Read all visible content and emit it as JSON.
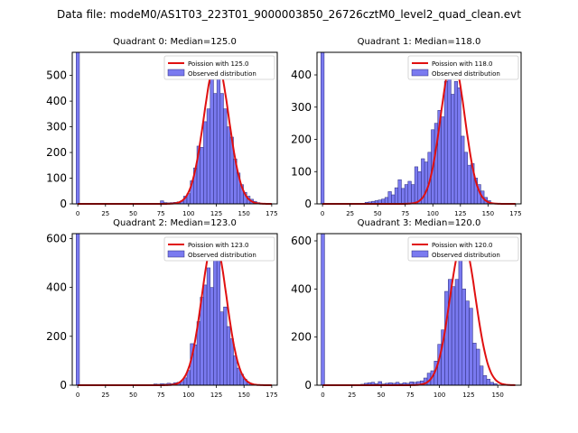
{
  "figure": {
    "suptitle": "Data file: modeM0/AS1T03_223T01_9000003850_26726cztM0_level2_quad_clean.evt"
  },
  "chart_data": [
    {
      "type": "bar",
      "title": "Quadrant 0: Median=125.0",
      "xlim": [
        -5,
        180
      ],
      "ylim": [
        0,
        590
      ],
      "xticks": [
        0,
        25,
        50,
        75,
        100,
        125,
        150,
        175
      ],
      "yticks": [
        0,
        100,
        200,
        300,
        400,
        500
      ],
      "legend": {
        "position": "top-right",
        "curve_label": "Poission with 125.0",
        "bars_label": "Observed distribution"
      },
      "poisson_mean": 125.0,
      "poisson_peak": 560,
      "spike": {
        "x": 0,
        "width": 3,
        "value": 590
      },
      "bin_width": 3,
      "bins": [
        {
          "x": 76,
          "y": 12
        },
        {
          "x": 79,
          "y": 5
        },
        {
          "x": 82,
          "y": 4
        },
        {
          "x": 85,
          "y": 5
        },
        {
          "x": 88,
          "y": 6
        },
        {
          "x": 91,
          "y": 8
        },
        {
          "x": 94,
          "y": 10
        },
        {
          "x": 97,
          "y": 30
        },
        {
          "x": 100,
          "y": 40
        },
        {
          "x": 103,
          "y": 90
        },
        {
          "x": 106,
          "y": 140
        },
        {
          "x": 109,
          "y": 225
        },
        {
          "x": 112,
          "y": 220
        },
        {
          "x": 115,
          "y": 320
        },
        {
          "x": 118,
          "y": 370
        },
        {
          "x": 121,
          "y": 490
        },
        {
          "x": 124,
          "y": 430
        },
        {
          "x": 127,
          "y": 520
        },
        {
          "x": 130,
          "y": 430
        },
        {
          "x": 133,
          "y": 370
        },
        {
          "x": 136,
          "y": 300
        },
        {
          "x": 139,
          "y": 260
        },
        {
          "x": 142,
          "y": 175
        },
        {
          "x": 145,
          "y": 120
        },
        {
          "x": 148,
          "y": 75
        },
        {
          "x": 151,
          "y": 45
        },
        {
          "x": 154,
          "y": 30
        },
        {
          "x": 157,
          "y": 18
        },
        {
          "x": 160,
          "y": 10
        },
        {
          "x": 163,
          "y": 5
        }
      ]
    },
    {
      "type": "bar",
      "title": "Quadrant 1: Median=118.0",
      "xlim": [
        -5,
        180
      ],
      "ylim": [
        0,
        470
      ],
      "xticks": [
        0,
        25,
        50,
        75,
        100,
        125,
        150,
        175
      ],
      "yticks": [
        0,
        100,
        200,
        300,
        400
      ],
      "legend": {
        "position": "top-right",
        "curve_label": "Poission with 118.0",
        "bars_label": "Observed distribution"
      },
      "poisson_mean": 118.0,
      "poisson_peak": 450,
      "spike": {
        "x": 0,
        "width": 3,
        "value": 470
      },
      "bin_width": 3,
      "bins": [
        {
          "x": 40,
          "y": 5
        },
        {
          "x": 43,
          "y": 6
        },
        {
          "x": 46,
          "y": 8
        },
        {
          "x": 49,
          "y": 10
        },
        {
          "x": 52,
          "y": 12
        },
        {
          "x": 55,
          "y": 15
        },
        {
          "x": 58,
          "y": 20
        },
        {
          "x": 61,
          "y": 38
        },
        {
          "x": 64,
          "y": 28
        },
        {
          "x": 67,
          "y": 50
        },
        {
          "x": 70,
          "y": 75
        },
        {
          "x": 73,
          "y": 48
        },
        {
          "x": 76,
          "y": 60
        },
        {
          "x": 79,
          "y": 70
        },
        {
          "x": 82,
          "y": 60
        },
        {
          "x": 85,
          "y": 115
        },
        {
          "x": 88,
          "y": 100
        },
        {
          "x": 91,
          "y": 140
        },
        {
          "x": 94,
          "y": 130
        },
        {
          "x": 97,
          "y": 160
        },
        {
          "x": 100,
          "y": 230
        },
        {
          "x": 103,
          "y": 250
        },
        {
          "x": 106,
          "y": 290
        },
        {
          "x": 109,
          "y": 270
        },
        {
          "x": 112,
          "y": 380
        },
        {
          "x": 115,
          "y": 440
        },
        {
          "x": 118,
          "y": 340
        },
        {
          "x": 121,
          "y": 380
        },
        {
          "x": 124,
          "y": 360
        },
        {
          "x": 127,
          "y": 210
        },
        {
          "x": 130,
          "y": 160
        },
        {
          "x": 133,
          "y": 120
        },
        {
          "x": 136,
          "y": 125
        },
        {
          "x": 139,
          "y": 80
        },
        {
          "x": 142,
          "y": 60
        },
        {
          "x": 145,
          "y": 40
        },
        {
          "x": 148,
          "y": 20
        },
        {
          "x": 151,
          "y": 10
        }
      ]
    },
    {
      "type": "bar",
      "title": "Quadrant 2: Median=123.0",
      "xlim": [
        -5,
        180
      ],
      "ylim": [
        0,
        620
      ],
      "xticks": [
        0,
        25,
        50,
        75,
        100,
        125,
        150,
        175
      ],
      "yticks": [
        0,
        200,
        400,
        600
      ],
      "legend": {
        "position": "top-right",
        "curve_label": "Poission with 123.0",
        "bars_label": "Observed distribution"
      },
      "poisson_mean": 123.0,
      "poisson_peak": 600,
      "spike": {
        "x": 0,
        "width": 3,
        "value": 620
      },
      "bin_width": 3,
      "bins": [
        {
          "x": 70,
          "y": 5
        },
        {
          "x": 73,
          "y": 4
        },
        {
          "x": 76,
          "y": 6
        },
        {
          "x": 79,
          "y": 5
        },
        {
          "x": 82,
          "y": 8
        },
        {
          "x": 85,
          "y": 6
        },
        {
          "x": 88,
          "y": 10
        },
        {
          "x": 91,
          "y": 12
        },
        {
          "x": 94,
          "y": 15
        },
        {
          "x": 97,
          "y": 30
        },
        {
          "x": 100,
          "y": 60
        },
        {
          "x": 103,
          "y": 170
        },
        {
          "x": 106,
          "y": 165
        },
        {
          "x": 109,
          "y": 260
        },
        {
          "x": 112,
          "y": 360
        },
        {
          "x": 115,
          "y": 410
        },
        {
          "x": 118,
          "y": 480
        },
        {
          "x": 121,
          "y": 400
        },
        {
          "x": 124,
          "y": 590
        },
        {
          "x": 127,
          "y": 520
        },
        {
          "x": 130,
          "y": 300
        },
        {
          "x": 133,
          "y": 320
        },
        {
          "x": 136,
          "y": 240
        },
        {
          "x": 139,
          "y": 190
        },
        {
          "x": 142,
          "y": 120
        },
        {
          "x": 145,
          "y": 70
        },
        {
          "x": 148,
          "y": 45
        },
        {
          "x": 151,
          "y": 25
        },
        {
          "x": 154,
          "y": 12
        },
        {
          "x": 157,
          "y": 6
        }
      ]
    },
    {
      "type": "bar",
      "title": "Quadrant 3: Median=120.0",
      "xlim": [
        -5,
        170
      ],
      "ylim": [
        0,
        630
      ],
      "xticks": [
        0,
        25,
        50,
        75,
        100,
        125,
        150
      ],
      "yticks": [
        0,
        200,
        400,
        600
      ],
      "legend": {
        "position": "top-right",
        "curve_label": "Poission with 120.0",
        "bars_label": "Observed distribution"
      },
      "poisson_mean": 120.0,
      "poisson_peak": 600,
      "spike": {
        "x": 0,
        "width": 3,
        "value": 630
      },
      "bin_width": 3,
      "bins": [
        {
          "x": 34,
          "y": 4
        },
        {
          "x": 37,
          "y": 8
        },
        {
          "x": 40,
          "y": 10
        },
        {
          "x": 43,
          "y": 12
        },
        {
          "x": 46,
          "y": 6
        },
        {
          "x": 49,
          "y": 15
        },
        {
          "x": 52,
          "y": 5
        },
        {
          "x": 55,
          "y": 8
        },
        {
          "x": 58,
          "y": 10
        },
        {
          "x": 61,
          "y": 8
        },
        {
          "x": 64,
          "y": 12
        },
        {
          "x": 67,
          "y": 6
        },
        {
          "x": 70,
          "y": 10
        },
        {
          "x": 73,
          "y": 8
        },
        {
          "x": 76,
          "y": 14
        },
        {
          "x": 79,
          "y": 12
        },
        {
          "x": 82,
          "y": 15
        },
        {
          "x": 85,
          "y": 18
        },
        {
          "x": 88,
          "y": 30
        },
        {
          "x": 91,
          "y": 50
        },
        {
          "x": 94,
          "y": 60
        },
        {
          "x": 97,
          "y": 100
        },
        {
          "x": 100,
          "y": 170
        },
        {
          "x": 103,
          "y": 230
        },
        {
          "x": 106,
          "y": 390
        },
        {
          "x": 109,
          "y": 440
        },
        {
          "x": 112,
          "y": 410
        },
        {
          "x": 115,
          "y": 440
        },
        {
          "x": 118,
          "y": 590
        },
        {
          "x": 121,
          "y": 400
        },
        {
          "x": 124,
          "y": 350
        },
        {
          "x": 127,
          "y": 320
        },
        {
          "x": 130,
          "y": 175
        },
        {
          "x": 133,
          "y": 150
        },
        {
          "x": 136,
          "y": 80
        },
        {
          "x": 139,
          "y": 40
        },
        {
          "x": 142,
          "y": 25
        },
        {
          "x": 145,
          "y": 12
        },
        {
          "x": 148,
          "y": 6
        }
      ]
    }
  ]
}
